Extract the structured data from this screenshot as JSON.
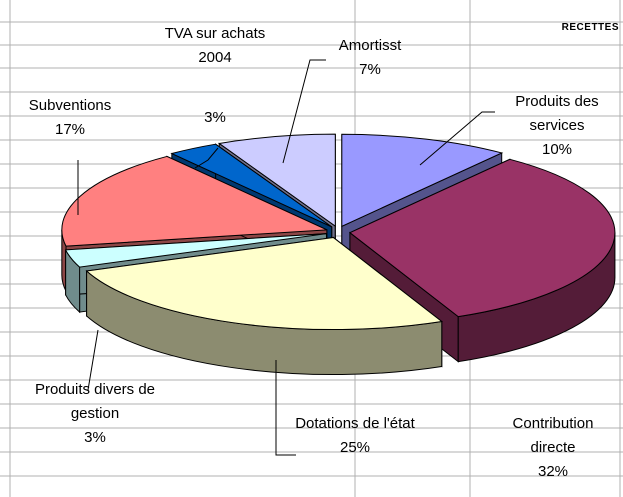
{
  "chart_data": {
    "type": "pie3d",
    "title": "RECETTES",
    "categories": [
      "Produits des services",
      "Contribution directe",
      "Dotations de l'état",
      "Produits divers de gestion",
      "Subventions",
      "TVA sur achats 2004",
      "Amortisst"
    ],
    "values": [
      10,
      32,
      25,
      3,
      17,
      3,
      7
    ],
    "value_labels": [
      "10%",
      "32%",
      "25%",
      "3%",
      "17%",
      "3%",
      "7%"
    ],
    "colors": [
      "#9999ff",
      "#993366",
      "#ffffcc",
      "#ccffff",
      "#ff8080",
      "#0066cc",
      "#ccccff"
    ]
  }
}
